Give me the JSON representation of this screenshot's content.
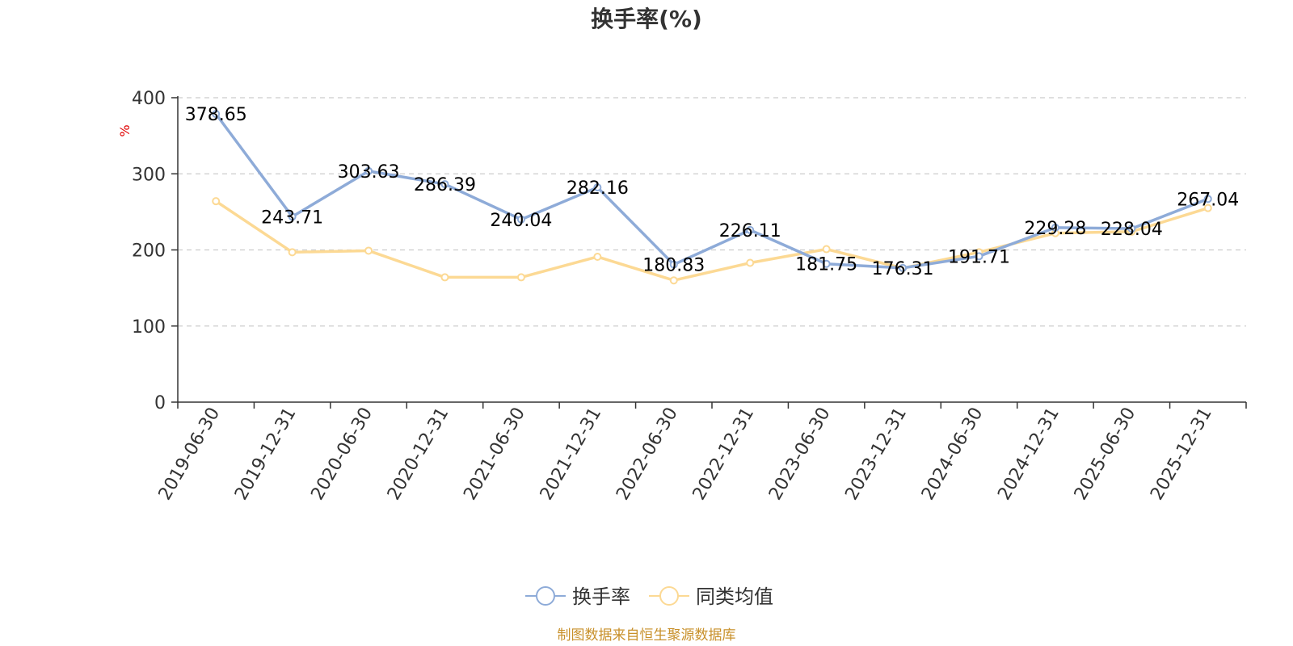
{
  "chart_data": {
    "type": "line",
    "title": "换手率(%)",
    "ylabel": "%",
    "ylim": [
      0,
      400
    ],
    "yticks": [
      0,
      100,
      200,
      300,
      400
    ],
    "categories": [
      "2019-06-30",
      "2019-12-31",
      "2020-06-30",
      "2020-12-31",
      "2021-06-30",
      "2021-12-31",
      "2022-06-30",
      "2022-12-31",
      "2023-06-30",
      "2023-12-31",
      "2024-06-30",
      "2024-12-31",
      "2025-06-30",
      "2025-12-31"
    ],
    "series": [
      {
        "name": "换手率",
        "color": "#8eabd8",
        "values": [
          378.65,
          243.71,
          303.63,
          286.39,
          240.04,
          282.16,
          180.83,
          226.11,
          181.75,
          176.31,
          191.71,
          229.28,
          228.04,
          267.04
        ],
        "labels": [
          "378.65",
          "243.71",
          "303.63",
          "286.39",
          "240.04",
          "282.16",
          "180.83",
          "226.11",
          "181.75",
          "176.31",
          "191.71",
          "229.28",
          "228.04",
          "267.04"
        ]
      },
      {
        "name": "同类均值",
        "color": "#fcd994",
        "values": [
          264,
          197,
          199,
          164,
          164,
          191,
          160,
          183,
          201,
          176,
          197,
          222,
          224,
          255
        ]
      }
    ],
    "grid": true,
    "legend": "bottom-center"
  },
  "footer": {
    "source": "制图数据来自恒生聚源数据库"
  }
}
